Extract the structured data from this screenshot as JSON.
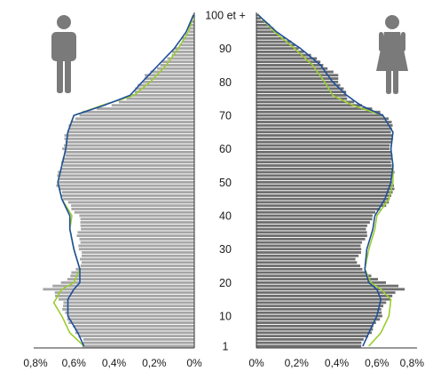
{
  "chart_data": {
    "type": "population-pyramid",
    "age_ticks": [
      "100 et +",
      "90",
      "80",
      "70",
      "60",
      "50",
      "40",
      "30",
      "20",
      "10",
      "1"
    ],
    "age_tick_values": [
      100,
      90,
      80,
      70,
      60,
      50,
      40,
      30,
      20,
      10,
      1
    ],
    "x_ticks_left": [
      "0,8%",
      "0,6%",
      "0,4%",
      "0,2%",
      "0%"
    ],
    "x_ticks_right": [
      "0%",
      "0,2%",
      "0,4%",
      "0,6%",
      "0,8%"
    ],
    "x_tick_values": [
      0.8,
      0.6,
      0.4,
      0.2,
      0.0
    ],
    "xlim": [
      0,
      0.8
    ],
    "ylim": [
      1,
      100
    ],
    "colors": {
      "bars_male": "#a6a6a6",
      "bars_female": "#6e6e6e",
      "line_blue": "#1f4e9c",
      "line_green": "#9ccc2f",
      "icons": "#7a7a7a"
    },
    "icons": {
      "left": "male-person-icon",
      "right": "female-person-icon"
    },
    "men_profile": [
      [
        1,
        0.55
      ],
      [
        3,
        0.56
      ],
      [
        6,
        0.6
      ],
      [
        10,
        0.64
      ],
      [
        14,
        0.66
      ],
      [
        17,
        0.7
      ],
      [
        18,
        0.76
      ],
      [
        19,
        0.7
      ],
      [
        20,
        0.66
      ],
      [
        22,
        0.62
      ],
      [
        24,
        0.59
      ],
      [
        26,
        0.56
      ],
      [
        30,
        0.57
      ],
      [
        35,
        0.58
      ],
      [
        38,
        0.56
      ],
      [
        40,
        0.58
      ],
      [
        43,
        0.62
      ],
      [
        46,
        0.66
      ],
      [
        49,
        0.68
      ],
      [
        52,
        0.68
      ],
      [
        55,
        0.66
      ],
      [
        58,
        0.65
      ],
      [
        62,
        0.65
      ],
      [
        66,
        0.63
      ],
      [
        69,
        0.6
      ],
      [
        71,
        0.55
      ],
      [
        73,
        0.42
      ],
      [
        75,
        0.33
      ],
      [
        78,
        0.29
      ],
      [
        82,
        0.24
      ],
      [
        85,
        0.17
      ],
      [
        88,
        0.12
      ],
      [
        91,
        0.08
      ],
      [
        94,
        0.04
      ],
      [
        97,
        0.02
      ],
      [
        100,
        0.005
      ]
    ],
    "women_profile": [
      [
        1,
        0.52
      ],
      [
        3,
        0.54
      ],
      [
        6,
        0.58
      ],
      [
        10,
        0.62
      ],
      [
        14,
        0.64
      ],
      [
        17,
        0.7
      ],
      [
        18,
        0.74
      ],
      [
        19,
        0.7
      ],
      [
        20,
        0.64
      ],
      [
        22,
        0.58
      ],
      [
        24,
        0.52
      ],
      [
        27,
        0.5
      ],
      [
        30,
        0.52
      ],
      [
        35,
        0.55
      ],
      [
        38,
        0.56
      ],
      [
        40,
        0.58
      ],
      [
        43,
        0.64
      ],
      [
        46,
        0.68
      ],
      [
        49,
        0.68
      ],
      [
        52,
        0.68
      ],
      [
        55,
        0.68
      ],
      [
        58,
        0.67
      ],
      [
        62,
        0.67
      ],
      [
        66,
        0.68
      ],
      [
        69,
        0.66
      ],
      [
        71,
        0.62
      ],
      [
        73,
        0.52
      ],
      [
        75,
        0.46
      ],
      [
        78,
        0.43
      ],
      [
        82,
        0.4
      ],
      [
        85,
        0.34
      ],
      [
        88,
        0.27
      ],
      [
        91,
        0.19
      ],
      [
        94,
        0.12
      ],
      [
        97,
        0.06
      ],
      [
        100,
        0.015
      ]
    ],
    "men_blue": [
      [
        1,
        0.55
      ],
      [
        5,
        0.58
      ],
      [
        10,
        0.63
      ],
      [
        15,
        0.63
      ],
      [
        18,
        0.6
      ],
      [
        20,
        0.57
      ],
      [
        24,
        0.57
      ],
      [
        30,
        0.6
      ],
      [
        36,
        0.62
      ],
      [
        40,
        0.62
      ],
      [
        45,
        0.66
      ],
      [
        50,
        0.68
      ],
      [
        55,
        0.66
      ],
      [
        60,
        0.64
      ],
      [
        65,
        0.63
      ],
      [
        70,
        0.6
      ],
      [
        73,
        0.45
      ],
      [
        76,
        0.32
      ],
      [
        80,
        0.26
      ],
      [
        85,
        0.18
      ],
      [
        90,
        0.1
      ],
      [
        95,
        0.04
      ],
      [
        100,
        0.005
      ]
    ],
    "men_green": [
      [
        1,
        0.55
      ],
      [
        5,
        0.62
      ],
      [
        10,
        0.66
      ],
      [
        14,
        0.7
      ],
      [
        18,
        0.66
      ],
      [
        20,
        0.6
      ],
      [
        24,
        0.57
      ],
      [
        30,
        0.6
      ],
      [
        36,
        0.62
      ],
      [
        40,
        0.61
      ],
      [
        45,
        0.66
      ],
      [
        50,
        0.68
      ],
      [
        55,
        0.66
      ],
      [
        60,
        0.64
      ],
      [
        65,
        0.63
      ],
      [
        70,
        0.6
      ],
      [
        73,
        0.46
      ],
      [
        76,
        0.3
      ],
      [
        80,
        0.22
      ],
      [
        85,
        0.14
      ],
      [
        90,
        0.08
      ],
      [
        95,
        0.03
      ],
      [
        100,
        0.003
      ]
    ],
    "women_blue": [
      [
        1,
        0.53
      ],
      [
        5,
        0.56
      ],
      [
        10,
        0.6
      ],
      [
        15,
        0.62
      ],
      [
        18,
        0.6
      ],
      [
        20,
        0.56
      ],
      [
        24,
        0.54
      ],
      [
        30,
        0.55
      ],
      [
        36,
        0.58
      ],
      [
        40,
        0.59
      ],
      [
        45,
        0.64
      ],
      [
        50,
        0.67
      ],
      [
        55,
        0.68
      ],
      [
        60,
        0.67
      ],
      [
        65,
        0.68
      ],
      [
        70,
        0.63
      ],
      [
        73,
        0.52
      ],
      [
        76,
        0.45
      ],
      [
        80,
        0.38
      ],
      [
        85,
        0.32
      ],
      [
        90,
        0.22
      ],
      [
        95,
        0.1
      ],
      [
        100,
        0.01
      ]
    ],
    "women_green": [
      [
        1,
        0.56
      ],
      [
        5,
        0.62
      ],
      [
        10,
        0.66
      ],
      [
        15,
        0.67
      ],
      [
        18,
        0.62
      ],
      [
        20,
        0.57
      ],
      [
        24,
        0.54
      ],
      [
        30,
        0.56
      ],
      [
        36,
        0.59
      ],
      [
        40,
        0.6
      ],
      [
        45,
        0.66
      ],
      [
        50,
        0.68
      ],
      [
        55,
        0.68
      ],
      [
        60,
        0.67
      ],
      [
        65,
        0.68
      ],
      [
        70,
        0.63
      ],
      [
        73,
        0.48
      ],
      [
        76,
        0.38
      ],
      [
        80,
        0.34
      ],
      [
        85,
        0.28
      ],
      [
        90,
        0.19
      ],
      [
        95,
        0.09
      ],
      [
        100,
        0.01
      ]
    ]
  }
}
